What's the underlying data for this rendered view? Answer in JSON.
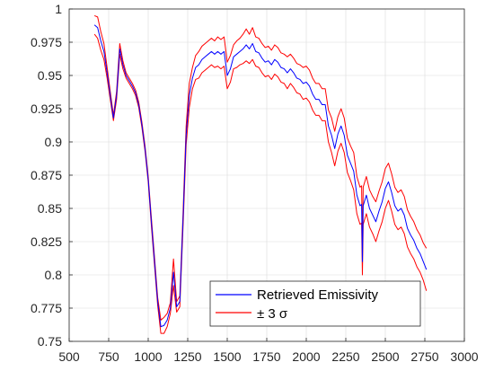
{
  "chart_data": {
    "type": "line",
    "title": "",
    "xlabel": "",
    "ylabel": "",
    "xlim": [
      500,
      3000
    ],
    "ylim": [
      0.75,
      1.0
    ],
    "xticks": [
      500,
      750,
      1000,
      1250,
      1500,
      1750,
      2000,
      2250,
      2500,
      2750,
      3000
    ],
    "yticks": [
      0.75,
      0.775,
      0.8,
      0.825,
      0.85,
      0.875,
      0.9,
      0.925,
      0.95,
      0.975,
      1
    ],
    "grid": true,
    "legend": {
      "position": "bottom-center",
      "entries": [
        "Retrieved Emissivity",
        "± 3 σ"
      ]
    },
    "series": [
      {
        "name": "Retrieved Emissivity",
        "color": "#0000ff",
        "x": [
          660,
          680,
          700,
          720,
          740,
          760,
          780,
          800,
          820,
          840,
          860,
          880,
          900,
          920,
          940,
          960,
          980,
          1000,
          1020,
          1040,
          1060,
          1080,
          1100,
          1120,
          1140,
          1160,
          1180,
          1200,
          1220,
          1240,
          1260,
          1280,
          1300,
          1320,
          1340,
          1360,
          1380,
          1400,
          1420,
          1440,
          1460,
          1480,
          1500,
          1520,
          1540,
          1560,
          1580,
          1600,
          1620,
          1640,
          1660,
          1680,
          1700,
          1720,
          1740,
          1760,
          1780,
          1800,
          1820,
          1840,
          1860,
          1880,
          1900,
          1920,
          1940,
          1960,
          1980,
          2000,
          2020,
          2040,
          2060,
          2080,
          2100,
          2120,
          2140,
          2160,
          2180,
          2200,
          2220,
          2240,
          2260,
          2280,
          2300,
          2320,
          2340,
          2350,
          2355,
          2360,
          2380,
          2400,
          2420,
          2440,
          2460,
          2480,
          2500,
          2520,
          2540,
          2560,
          2580,
          2600,
          2620,
          2640,
          2660,
          2680,
          2700,
          2720,
          2740,
          2760
        ],
        "y": [
          0.988,
          0.986,
          0.976,
          0.968,
          0.952,
          0.935,
          0.918,
          0.935,
          0.97,
          0.958,
          0.95,
          0.946,
          0.942,
          0.937,
          0.928,
          0.913,
          0.895,
          0.872,
          0.84,
          0.81,
          0.78,
          0.761,
          0.762,
          0.766,
          0.775,
          0.802,
          0.776,
          0.78,
          0.84,
          0.905,
          0.935,
          0.948,
          0.956,
          0.958,
          0.962,
          0.964,
          0.966,
          0.968,
          0.966,
          0.968,
          0.966,
          0.968,
          0.95,
          0.955,
          0.964,
          0.966,
          0.968,
          0.97,
          0.973,
          0.97,
          0.974,
          0.968,
          0.967,
          0.963,
          0.96,
          0.961,
          0.958,
          0.962,
          0.96,
          0.956,
          0.955,
          0.952,
          0.955,
          0.952,
          0.948,
          0.947,
          0.944,
          0.945,
          0.942,
          0.936,
          0.932,
          0.932,
          0.928,
          0.928,
          0.912,
          0.905,
          0.895,
          0.906,
          0.912,
          0.905,
          0.89,
          0.884,
          0.878,
          0.86,
          0.852,
          0.853,
          0.81,
          0.852,
          0.86,
          0.85,
          0.845,
          0.84,
          0.848,
          0.855,
          0.865,
          0.87,
          0.862,
          0.852,
          0.848,
          0.85,
          0.845,
          0.835,
          0.83,
          0.826,
          0.82,
          0.816,
          0.81,
          0.804
        ]
      },
      {
        "name": "± 3 σ",
        "color": "#ff0000",
        "x": [
          660,
          680,
          700,
          720,
          740,
          760,
          780,
          800,
          820,
          840,
          860,
          880,
          900,
          920,
          940,
          960,
          980,
          1000,
          1020,
          1040,
          1060,
          1080,
          1100,
          1120,
          1140,
          1160,
          1180,
          1200,
          1220,
          1240,
          1260,
          1280,
          1300,
          1320,
          1340,
          1360,
          1380,
          1400,
          1420,
          1440,
          1460,
          1480,
          1500,
          1520,
          1540,
          1560,
          1580,
          1600,
          1620,
          1640,
          1660,
          1680,
          1700,
          1720,
          1740,
          1760,
          1780,
          1800,
          1820,
          1840,
          1860,
          1880,
          1900,
          1920,
          1940,
          1960,
          1980,
          2000,
          2020,
          2040,
          2060,
          2080,
          2100,
          2120,
          2140,
          2160,
          2180,
          2200,
          2220,
          2240,
          2260,
          2280,
          2300,
          2320,
          2340,
          2350,
          2355,
          2360,
          2380,
          2400,
          2420,
          2440,
          2460,
          2480,
          2500,
          2520,
          2540,
          2560,
          2580,
          2600,
          2620,
          2640,
          2660,
          2680,
          2700,
          2720,
          2740,
          2760
        ],
        "y": [
          0.995,
          0.994,
          0.983,
          0.974,
          0.956,
          0.938,
          0.92,
          0.938,
          0.974,
          0.961,
          0.952,
          0.948,
          0.944,
          0.939,
          0.93,
          0.915,
          0.897,
          0.874,
          0.843,
          0.813,
          0.783,
          0.766,
          0.768,
          0.771,
          0.779,
          0.812,
          0.78,
          0.784,
          0.845,
          0.912,
          0.944,
          0.956,
          0.965,
          0.968,
          0.972,
          0.974,
          0.976,
          0.978,
          0.976,
          0.979,
          0.977,
          0.979,
          0.96,
          0.965,
          0.973,
          0.976,
          0.978,
          0.981,
          0.985,
          0.981,
          0.986,
          0.979,
          0.978,
          0.974,
          0.971,
          0.972,
          0.969,
          0.973,
          0.971,
          0.967,
          0.966,
          0.964,
          0.966,
          0.963,
          0.959,
          0.958,
          0.956,
          0.957,
          0.954,
          0.948,
          0.944,
          0.944,
          0.94,
          0.94,
          0.924,
          0.918,
          0.908,
          0.919,
          0.925,
          0.918,
          0.903,
          0.897,
          0.892,
          0.874,
          0.866,
          0.867,
          0.82,
          0.866,
          0.874,
          0.864,
          0.859,
          0.855,
          0.863,
          0.87,
          0.88,
          0.884,
          0.876,
          0.866,
          0.862,
          0.864,
          0.859,
          0.849,
          0.844,
          0.84,
          0.834,
          0.83,
          0.824,
          0.82
        ]
      },
      {
        "color": "#ff0000",
        "x": [
          660,
          680,
          700,
          720,
          740,
          760,
          780,
          800,
          820,
          840,
          860,
          880,
          900,
          920,
          940,
          960,
          980,
          1000,
          1020,
          1040,
          1060,
          1080,
          1100,
          1120,
          1140,
          1160,
          1180,
          1200,
          1220,
          1240,
          1260,
          1280,
          1300,
          1320,
          1340,
          1360,
          1380,
          1400,
          1420,
          1440,
          1460,
          1480,
          1500,
          1520,
          1540,
          1560,
          1580,
          1600,
          1620,
          1640,
          1660,
          1680,
          1700,
          1720,
          1740,
          1760,
          1780,
          1800,
          1820,
          1840,
          1860,
          1880,
          1900,
          1920,
          1940,
          1960,
          1980,
          2000,
          2020,
          2040,
          2060,
          2080,
          2100,
          2120,
          2140,
          2160,
          2180,
          2200,
          2220,
          2240,
          2260,
          2280,
          2300,
          2320,
          2340,
          2350,
          2355,
          2360,
          2380,
          2400,
          2420,
          2440,
          2460,
          2480,
          2500,
          2520,
          2540,
          2560,
          2580,
          2600,
          2620,
          2640,
          2660,
          2680,
          2700,
          2720,
          2740,
          2760
        ],
        "y": [
          0.981,
          0.978,
          0.969,
          0.962,
          0.948,
          0.932,
          0.916,
          0.932,
          0.966,
          0.955,
          0.948,
          0.944,
          0.94,
          0.935,
          0.926,
          0.911,
          0.893,
          0.87,
          0.837,
          0.807,
          0.777,
          0.756,
          0.756,
          0.761,
          0.771,
          0.792,
          0.772,
          0.776,
          0.835,
          0.898,
          0.926,
          0.94,
          0.947,
          0.948,
          0.952,
          0.954,
          0.956,
          0.958,
          0.956,
          0.957,
          0.955,
          0.957,
          0.94,
          0.945,
          0.955,
          0.956,
          0.958,
          0.959,
          0.961,
          0.959,
          0.962,
          0.957,
          0.956,
          0.952,
          0.949,
          0.95,
          0.947,
          0.951,
          0.949,
          0.945,
          0.944,
          0.94,
          0.944,
          0.941,
          0.937,
          0.936,
          0.932,
          0.933,
          0.93,
          0.924,
          0.92,
          0.92,
          0.916,
          0.916,
          0.9,
          0.892,
          0.882,
          0.893,
          0.899,
          0.892,
          0.877,
          0.871,
          0.864,
          0.846,
          0.838,
          0.839,
          0.8,
          0.838,
          0.846,
          0.836,
          0.831,
          0.825,
          0.833,
          0.84,
          0.85,
          0.856,
          0.848,
          0.838,
          0.834,
          0.836,
          0.831,
          0.821,
          0.816,
          0.812,
          0.806,
          0.802,
          0.796,
          0.788
        ]
      }
    ]
  }
}
